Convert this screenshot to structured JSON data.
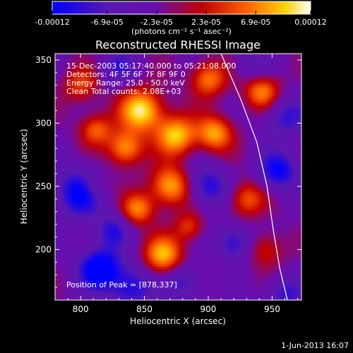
{
  "colorbar": {
    "ticks": [
      "-0.00012",
      "-6.9e-05",
      "-2.3e-05",
      "2.3e-05",
      "6.9e-05",
      "0.00012"
    ],
    "tick_values": [
      -0.00012,
      -6.9e-05,
      -2.3e-05,
      2.3e-05,
      6.9e-05,
      0.00012
    ],
    "range": [
      -0.00012,
      0.00012
    ],
    "unit_label": "(photons cm⁻² s⁻¹ asec⁻²)",
    "colors": [
      "#0000ff",
      "#6a0dad",
      "#b00000",
      "#ff6000",
      "#ffcc00",
      "#ffffff"
    ]
  },
  "chart_data": {
    "type": "heatmap",
    "title": "Reconstructed RHESSI Image",
    "xlabel": "Heliocentric X (arcsec)",
    "ylabel": "Heliocentric Y (arcsec)",
    "xlim": [
      780,
      973
    ],
    "ylim": [
      160,
      355
    ],
    "xticks": [
      800,
      850,
      900,
      950
    ],
    "yticks": [
      200,
      250,
      300,
      350
    ],
    "annotations": [
      "15-Dec-2003 05:17:40.000 to 05:21:08.000",
      "Detectors: 4F 5F 6F 7F 8F 9F 0",
      "Energy Range: 25.0 - 50.0 keV",
      "Clean     Total counts: 2.08E+03"
    ],
    "peak_label": "Position of Peak = [878,337]",
    "peak": [
      878,
      337
    ],
    "limb_points": [
      [
        910,
        355
      ],
      [
        925,
        320
      ],
      [
        938,
        285
      ],
      [
        946,
        250
      ],
      [
        951,
        215
      ],
      [
        956,
        185
      ],
      [
        962,
        160
      ]
    ],
    "blobs": [
      [
        848,
        310,
        1.0,
        12
      ],
      [
        875,
        290,
        0.9,
        11
      ],
      [
        835,
        280,
        0.8,
        10
      ],
      [
        900,
        335,
        0.7,
        10
      ],
      [
        870,
        250,
        0.85,
        11
      ],
      [
        845,
        232,
        0.7,
        9
      ],
      [
        905,
        292,
        0.8,
        10
      ],
      [
        930,
        240,
        0.6,
        10
      ],
      [
        865,
        195,
        0.85,
        11
      ],
      [
        800,
        330,
        0.5,
        10
      ],
      [
        812,
        295,
        0.6,
        9
      ],
      [
        942,
        325,
        0.75,
        10
      ],
      [
        945,
        200,
        0.45,
        10
      ],
      [
        885,
        218,
        0.5,
        8
      ],
      [
        812,
        250,
        0.4,
        9
      ],
      [
        800,
        245,
        -0.8,
        14
      ],
      [
        815,
        185,
        -0.9,
        12
      ],
      [
        840,
        170,
        -0.6,
        12
      ],
      [
        960,
        305,
        -0.5,
        12
      ],
      [
        955,
        262,
        -0.7,
        11
      ],
      [
        900,
        250,
        -0.6,
        11
      ],
      [
        920,
        205,
        -0.6,
        10
      ],
      [
        880,
        175,
        -0.5,
        10
      ],
      [
        830,
        345,
        -0.4,
        10
      ],
      [
        960,
        165,
        -0.5,
        10
      ],
      [
        935,
        345,
        -0.3,
        10
      ],
      [
        825,
        215,
        -0.5,
        9
      ]
    ]
  },
  "footer": {
    "date": "1-Jun-2013 16:07"
  }
}
